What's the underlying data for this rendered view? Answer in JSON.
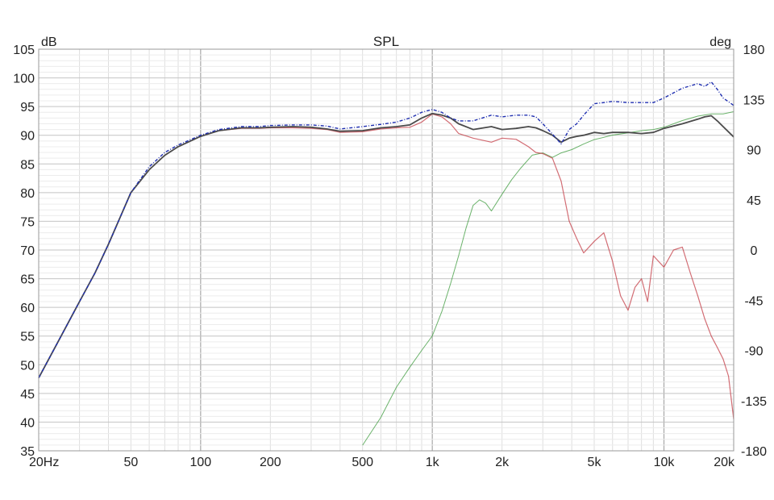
{
  "chart_data": {
    "type": "line",
    "title": "SPL",
    "ylabel_left": "dB",
    "ylabel_right": "deg",
    "x_scale": "log",
    "xlim": [
      20,
      20000
    ],
    "ylim_left": [
      35,
      105
    ],
    "ylim_right": [
      -180,
      180
    ],
    "grid": true,
    "x_tick_labels": [
      {
        "value": 20,
        "label": "20Hz"
      },
      {
        "value": 50,
        "label": "50"
      },
      {
        "value": 100,
        "label": "100"
      },
      {
        "value": 200,
        "label": "200"
      },
      {
        "value": 500,
        "label": "500"
      },
      {
        "value": 1000,
        "label": "1k"
      },
      {
        "value": 2000,
        "label": "2k"
      },
      {
        "value": 5000,
        "label": "5k"
      },
      {
        "value": 10000,
        "label": "10k"
      },
      {
        "value": 20000,
        "label": "20k"
      }
    ],
    "y_left_ticks": [
      "35",
      "40",
      "45",
      "50",
      "55",
      "60",
      "65",
      "70",
      "75",
      "80",
      "85",
      "90",
      "95",
      "100",
      "105"
    ],
    "y_right_ticks": [
      "-180",
      "-135",
      "-90",
      "-45",
      "0",
      "45",
      "90",
      "135",
      "180"
    ],
    "series": [
      {
        "color": "#1f2fb0",
        "style": "dash-dot",
        "axis": "left",
        "x": [
          20,
          25,
          30,
          35,
          40,
          50,
          60,
          70,
          80,
          100,
          120,
          150,
          180,
          200,
          250,
          300,
          350,
          400,
          500,
          600,
          700,
          800,
          900,
          1000,
          1100,
          1200,
          1300,
          1500,
          1800,
          2000,
          2300,
          2600,
          2800,
          3000,
          3300,
          3600,
          3900,
          4200,
          4500,
          5000,
          5500,
          6000,
          7000,
          8000,
          9000,
          10000,
          12000,
          14000,
          15000,
          16000,
          17000,
          18000,
          20000
        ],
        "y": [
          47.7,
          55,
          61,
          66,
          71,
          80,
          84.5,
          87,
          88.3,
          90,
          91,
          91.5,
          91.5,
          91.7,
          91.8,
          91.8,
          91.6,
          91.1,
          91.5,
          91.9,
          92.3,
          93,
          94,
          94.5,
          94,
          93,
          92.5,
          92.5,
          93.5,
          93.2,
          93.5,
          93.5,
          93.2,
          92,
          90.2,
          88.5,
          91,
          92,
          93.5,
          95.5,
          95.7,
          95.9,
          95.7,
          95.7,
          95.7,
          96.5,
          98.2,
          99,
          98.5,
          99.3,
          98,
          96.5,
          95.2
        ]
      },
      {
        "color": "#4a4a4a",
        "style": "solid",
        "axis": "left",
        "x": [
          20,
          25,
          30,
          35,
          40,
          50,
          60,
          70,
          80,
          100,
          120,
          150,
          180,
          200,
          250,
          300,
          350,
          400,
          500,
          600,
          700,
          800,
          900,
          1000,
          1100,
          1200,
          1300,
          1500,
          1800,
          2000,
          2300,
          2600,
          2800,
          3000,
          3300,
          3600,
          3900,
          4200,
          4500,
          5000,
          5500,
          6000,
          7000,
          8000,
          9000,
          10000,
          12000,
          14000,
          15000,
          16000,
          17000,
          18000,
          20000
        ],
        "y": [
          47.7,
          55,
          61,
          66,
          71,
          80,
          84,
          86.5,
          88,
          89.8,
          90.8,
          91.3,
          91.3,
          91.4,
          91.5,
          91.4,
          91.1,
          90.7,
          90.8,
          91.3,
          91.5,
          91.8,
          93,
          93.8,
          93.5,
          93,
          92,
          91,
          91.5,
          91,
          91.2,
          91.5,
          91.3,
          90.8,
          90,
          88.8,
          89.5,
          89.8,
          90,
          90.5,
          90.3,
          90.5,
          90.5,
          90.3,
          90.5,
          91.2,
          92,
          92.8,
          93.2,
          93.4,
          92.5,
          91.5,
          89.7
        ]
      },
      {
        "color": "#c0303a",
        "style": "solid",
        "axis": "left",
        "x": [
          20,
          25,
          30,
          35,
          40,
          50,
          60,
          70,
          80,
          100,
          120,
          150,
          180,
          200,
          250,
          300,
          350,
          400,
          500,
          600,
          700,
          800,
          900,
          1000,
          1100,
          1200,
          1300,
          1500,
          1800,
          2000,
          2300,
          2600,
          2800,
          3000,
          3300,
          3600,
          3900,
          4200,
          4500,
          5000,
          5500,
          6000,
          6500,
          7000,
          7500,
          8000,
          8500,
          9000,
          10000,
          11000,
          12000,
          13000,
          14000,
          15000,
          16000,
          17000,
          18000,
          19000,
          20000
        ],
        "y": [
          47.7,
          55,
          61,
          66,
          71,
          80,
          84,
          86.5,
          88,
          89.8,
          90.8,
          91.2,
          91.2,
          91.3,
          91.3,
          91.2,
          91,
          90.5,
          90.6,
          91.1,
          91.3,
          91.4,
          92.3,
          93.7,
          93.2,
          92,
          90.3,
          89.5,
          88.8,
          89.5,
          89.3,
          88,
          87,
          86.8,
          86,
          82,
          75,
          72,
          69.5,
          71.5,
          73,
          68,
          62,
          59.5,
          63.5,
          65,
          61,
          69,
          67,
          70,
          70.5,
          66,
          62,
          58,
          55,
          53,
          51,
          48,
          40.5
        ]
      },
      {
        "color": "#3a9a3a",
        "style": "solid",
        "axis": "right",
        "x": [
          500,
          600,
          700,
          800,
          900,
          1000,
          1100,
          1200,
          1300,
          1400,
          1500,
          1600,
          1700,
          1800,
          2000,
          2200,
          2400,
          2700,
          3000,
          3300,
          3600,
          4000,
          4500,
          5000,
          5500,
          6000,
          7000,
          8000,
          9000,
          10000,
          12000,
          14000,
          16000,
          18000,
          20000
        ],
        "y": [
          -175,
          -150,
          -123,
          -105,
          -90,
          -77,
          -55,
          -30,
          -5,
          20,
          40,
          45,
          42,
          35,
          50,
          63,
          73,
          85,
          87,
          83,
          87,
          90,
          95,
          99,
          101,
          103,
          105,
          107,
          108,
          110,
          116,
          120,
          122,
          122,
          124
        ]
      }
    ]
  }
}
